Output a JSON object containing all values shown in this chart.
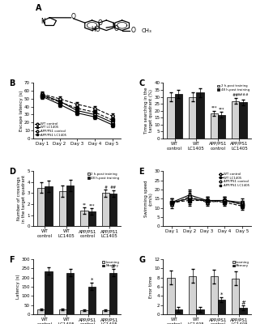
{
  "panel_B": {
    "days": [
      1,
      2,
      3,
      4,
      5
    ],
    "wt_control": [
      55,
      47,
      35,
      30,
      20
    ],
    "wt_lc1405": [
      53,
      43,
      32,
      27,
      17
    ],
    "app_control": [
      56,
      50,
      43,
      38,
      28
    ],
    "app_lc1405": [
      54,
      46,
      38,
      33,
      23
    ],
    "wt_control_err": [
      3,
      3,
      3,
      3,
      3
    ],
    "wt_lc1405_err": [
      3,
      3,
      3,
      3,
      3
    ],
    "app_control_err": [
      3,
      3,
      3,
      3,
      3
    ],
    "app_lc1405_err": [
      3,
      3,
      3,
      3,
      3
    ],
    "ylabel": "Escape latency (s)",
    "ylim": [
      0,
      70
    ]
  },
  "panel_C": {
    "groups": [
      "WT\ncontrol",
      "WT\nLC1405",
      "APP/PS1\ncontrol",
      "APP/PS1\nLC1405"
    ],
    "val_2h": [
      30,
      30,
      18,
      27
    ],
    "val_48h": [
      32,
      33,
      17,
      26
    ],
    "err_2h": [
      3,
      3,
      2,
      2
    ],
    "err_48h": [
      3,
      3,
      2,
      2
    ],
    "ylabel": "Time searching in the\ntarget quadrant (%)",
    "ylim": [
      0,
      40
    ]
  },
  "panel_D": {
    "groups": [
      "WT\ncontrol",
      "WT\nLC1405",
      "APP/PS1\ncontrol",
      "APP/PS1\nLC1405"
    ],
    "val_2h": [
      3.5,
      3.2,
      1.4,
      3.0
    ],
    "val_48h": [
      3.6,
      3.7,
      1.35,
      2.95
    ],
    "err_2h": [
      0.5,
      0.5,
      0.3,
      0.3
    ],
    "err_48h": [
      0.5,
      0.5,
      0.3,
      0.3
    ],
    "ylabel": "Number of crossings\nin the target quadrant",
    "ylim": [
      0,
      5
    ]
  },
  "panel_E": {
    "days": [
      1,
      2,
      3,
      4,
      5
    ],
    "wt_control": [
      13,
      17,
      14,
      14,
      13
    ],
    "wt_lc1405": [
      13,
      15,
      14,
      14,
      12
    ],
    "app_control": [
      12,
      16,
      13,
      14,
      12
    ],
    "app_lc1405": [
      13,
      14,
      14,
      13,
      11
    ],
    "wt_control_err": [
      2,
      3,
      2,
      2,
      2
    ],
    "wt_lc1405_err": [
      2,
      3,
      2,
      2,
      2
    ],
    "app_control_err": [
      2,
      3,
      2,
      2,
      2
    ],
    "app_lc1405_err": [
      2,
      3,
      2,
      2,
      2
    ],
    "ylabel": "Swimming speed\n(cm/s)",
    "ylim": [
      0,
      30
    ]
  },
  "panel_F": {
    "groups": [
      "WT\ncontrol",
      "WT\nLC1405",
      "APP/PS1\ncontrol",
      "APP/PS1\nLC1405"
    ],
    "val_learn": [
      28,
      25,
      22,
      22
    ],
    "val_mem": [
      235,
      225,
      150,
      225
    ],
    "err_learn": [
      5,
      5,
      5,
      5
    ],
    "err_mem": [
      20,
      20,
      20,
      20
    ],
    "ylabel": "Latency (s)",
    "ylim": [
      0,
      300
    ]
  },
  "panel_G": {
    "groups": [
      "WT\ncontrol",
      "WT\nLC1405",
      "APP/PS1\ncontrol",
      "APP/PS1\nLC1405"
    ],
    "val_learn": [
      8,
      8.3,
      8.2,
      7.8
    ],
    "val_mem": [
      1.0,
      1.1,
      3.2,
      1.4
    ],
    "err_learn": [
      1.5,
      1.5,
      1.5,
      1.5
    ],
    "err_mem": [
      0.5,
      0.5,
      0.5,
      0.5
    ],
    "ylabel": "Error time",
    "ylim": [
      0,
      12
    ]
  },
  "colors": {
    "open_bar": "#d3d3d3",
    "filled_bar": "#1a1a1a"
  }
}
